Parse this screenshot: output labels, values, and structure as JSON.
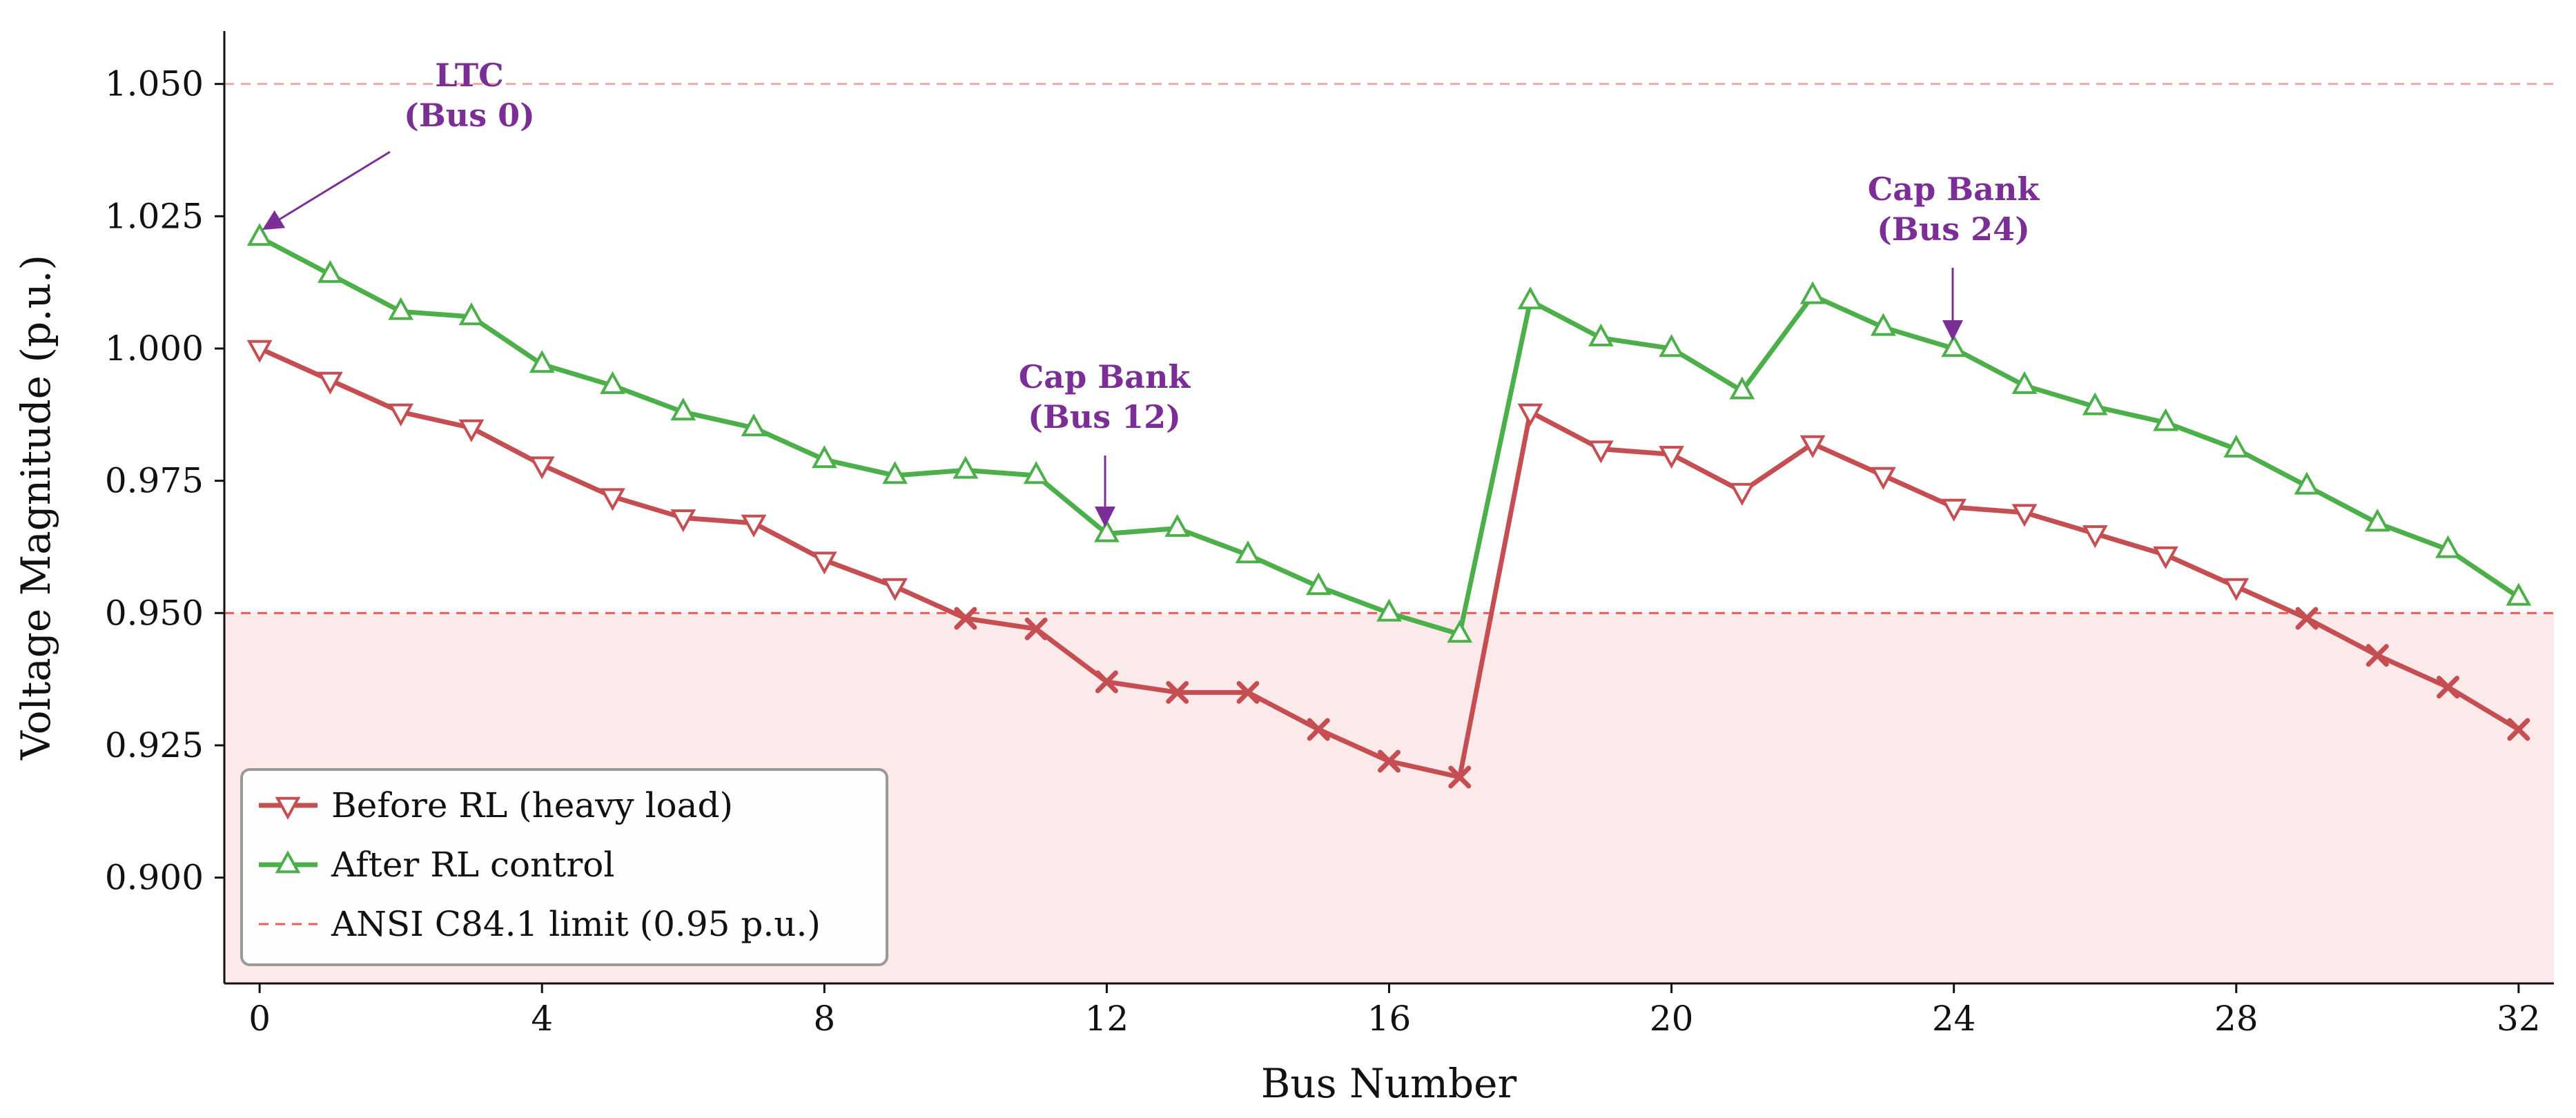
{
  "chart_data": {
    "type": "line",
    "xlabel": "Bus Number",
    "ylabel": "Voltage Magnitude (p.u.)",
    "xlim": [
      -0.5,
      32.5
    ],
    "ylim": [
      0.88,
      1.06
    ],
    "xticks": [
      0,
      4,
      8,
      12,
      16,
      20,
      24,
      28,
      32
    ],
    "yticks": [
      0.9,
      0.925,
      0.95,
      0.975,
      1.0,
      1.025,
      1.05
    ],
    "ytick_labels": [
      "0.900",
      "0.925",
      "0.950",
      "0.975",
      "1.000",
      "1.025",
      "1.050"
    ],
    "x": [
      0,
      1,
      2,
      3,
      4,
      5,
      6,
      7,
      8,
      9,
      10,
      11,
      12,
      13,
      14,
      15,
      16,
      17,
      18,
      19,
      20,
      21,
      22,
      23,
      24,
      25,
      26,
      27,
      28,
      29,
      30,
      31,
      32
    ],
    "series": [
      {
        "name": "Before RL (heavy load)",
        "color": "#c44e52",
        "marker": "triangle-down",
        "violation_marker": "x",
        "values": [
          1.0,
          0.994,
          0.988,
          0.985,
          0.978,
          0.972,
          0.968,
          0.967,
          0.96,
          0.955,
          0.949,
          0.947,
          0.937,
          0.935,
          0.935,
          0.928,
          0.922,
          0.919,
          0.988,
          0.981,
          0.98,
          0.973,
          0.982,
          0.976,
          0.97,
          0.969,
          0.965,
          0.961,
          0.955,
          0.949,
          0.942,
          0.936,
          0.928
        ]
      },
      {
        "name": "After RL control",
        "color": "#4daf4a",
        "marker": "triangle-up",
        "values": [
          1.021,
          1.014,
          1.007,
          1.006,
          0.997,
          0.993,
          0.988,
          0.985,
          0.979,
          0.976,
          0.977,
          0.976,
          0.965,
          0.966,
          0.961,
          0.955,
          0.95,
          0.946,
          1.009,
          1.002,
          1.0,
          0.992,
          1.01,
          1.004,
          1.0,
          0.993,
          0.989,
          0.986,
          0.981,
          0.974,
          0.967,
          0.962,
          0.953
        ]
      }
    ],
    "reference_lines": [
      {
        "name": "ANSI C84.1 limit (0.95 p.u.)",
        "y": 0.95,
        "color": "#ee5a5a",
        "style": "dashed"
      },
      {
        "y": 1.05,
        "color": "#f7a8a8",
        "style": "dashed"
      }
    ],
    "violation_region": {
      "y_max": 0.95,
      "color": "#fce9e9"
    },
    "annotations": [
      {
        "lines": [
          "LTC",
          "(Bus 0)"
        ],
        "x": 0,
        "y": 1.021,
        "color": "#7b2e96"
      },
      {
        "lines": [
          "Cap Bank",
          "(Bus 12)"
        ],
        "x": 12,
        "y": 0.965,
        "color": "#7b2e96"
      },
      {
        "lines": [
          "Cap Bank",
          "(Bus 24)"
        ],
        "x": 24,
        "y": 1.0,
        "color": "#7b2e96"
      }
    ],
    "legend": {
      "placement": "lower-left",
      "entries": [
        "Before RL (heavy load)",
        "After RL control",
        "ANSI C84.1 limit (0.95 p.u.)"
      ]
    },
    "grid": false
  }
}
